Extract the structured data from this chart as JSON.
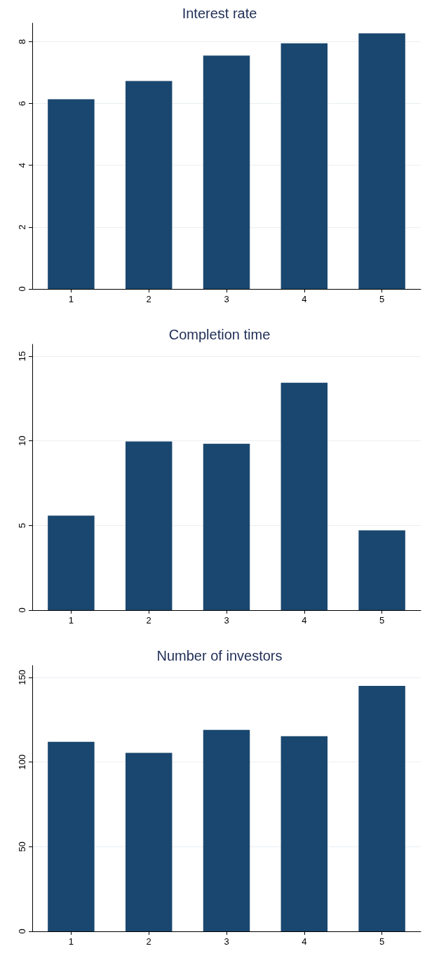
{
  "chart_data": [
    {
      "type": "bar",
      "title": "Interest rate",
      "categories": [
        "1",
        "2",
        "3",
        "4",
        "5"
      ],
      "values": [
        6.14,
        6.73,
        7.55,
        7.95,
        8.27
      ],
      "color": "#1a476f",
      "ylim": [
        0,
        8.6
      ],
      "yticks": [
        0,
        2,
        4,
        6,
        8
      ],
      "grid": "y"
    },
    {
      "type": "bar",
      "title": "Completion time",
      "categories": [
        "1",
        "2",
        "3",
        "4",
        "5"
      ],
      "values": [
        5.58,
        9.96,
        9.83,
        13.43,
        4.71
      ],
      "color": "#1a476f",
      "ylim": [
        0,
        15.7
      ],
      "yticks": [
        0,
        5,
        10,
        15
      ],
      "grid": "y"
    },
    {
      "type": "bar",
      "title": "Number of investors",
      "categories": [
        "1",
        "2",
        "3",
        "4",
        "5"
      ],
      "values": [
        112,
        105.4,
        119,
        115.3,
        145
      ],
      "color": "#1a476f",
      "ylim": [
        0,
        157
      ],
      "yticks": [
        0,
        50,
        100,
        150
      ],
      "grid": "y"
    }
  ]
}
